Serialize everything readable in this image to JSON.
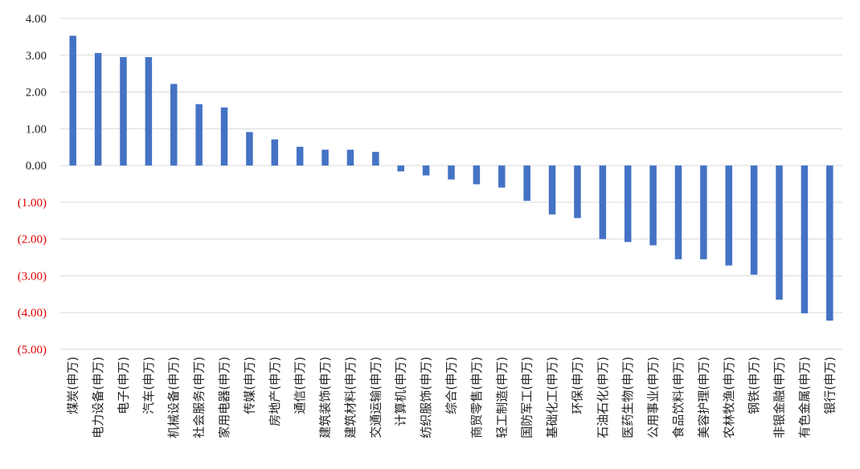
{
  "chart_data": {
    "type": "bar",
    "title": "",
    "xlabel": "",
    "ylabel": "",
    "ylim": [
      -5,
      4
    ],
    "y_ticks": [
      4,
      3,
      2,
      1,
      0,
      -1,
      -2,
      -3,
      -4,
      -5
    ],
    "y_tick_labels": [
      "4.00",
      "3.00",
      "2.00",
      "1.00",
      "0.00",
      "(1.00)",
      "(2.00)",
      "(3.00)",
      "(4.00)",
      "(5.00)"
    ],
    "grid": true,
    "colors": {
      "bar": "#4472C4",
      "grid": "#D9D9D9",
      "positive_tick": "#222222",
      "negative_tick": "#E00000"
    },
    "categories": [
      "煤炭(申万)",
      "电力设备(申万)",
      "电子(申万)",
      "汽车(申万)",
      "机械设备(申万)",
      "社会服务(申万)",
      "家用电器(申万)",
      "传媒(申万)",
      "房地产(申万)",
      "通信(申万)",
      "建筑装饰(申万)",
      "建筑材料(申万)",
      "交通运输(申万)",
      "计算机(申万)",
      "纺织服饰(申万)",
      "综合(申万)",
      "商贸零售(申万)",
      "轻工制造(申万)",
      "国防军工(申万)",
      "基础化工(申万)",
      "环保(申万)",
      "石油石化(申万)",
      "医药生物(申万)",
      "公用事业(申万)",
      "食品饮料(申万)",
      "美容护理(申万)",
      "农林牧渔(申万)",
      "钢铁(申万)",
      "非银金融(申万)",
      "有色金属(申万)",
      "银行(申万)"
    ],
    "values": [
      3.53,
      3.06,
      2.95,
      2.95,
      2.22,
      1.67,
      1.58,
      0.91,
      0.71,
      0.51,
      0.43,
      0.43,
      0.37,
      -0.16,
      -0.27,
      -0.38,
      -0.51,
      -0.6,
      -0.96,
      -1.33,
      -1.43,
      -2.0,
      -2.08,
      -2.17,
      -2.55,
      -2.55,
      -2.72,
      -2.97,
      -3.65,
      -4.02,
      -4.22
    ]
  }
}
